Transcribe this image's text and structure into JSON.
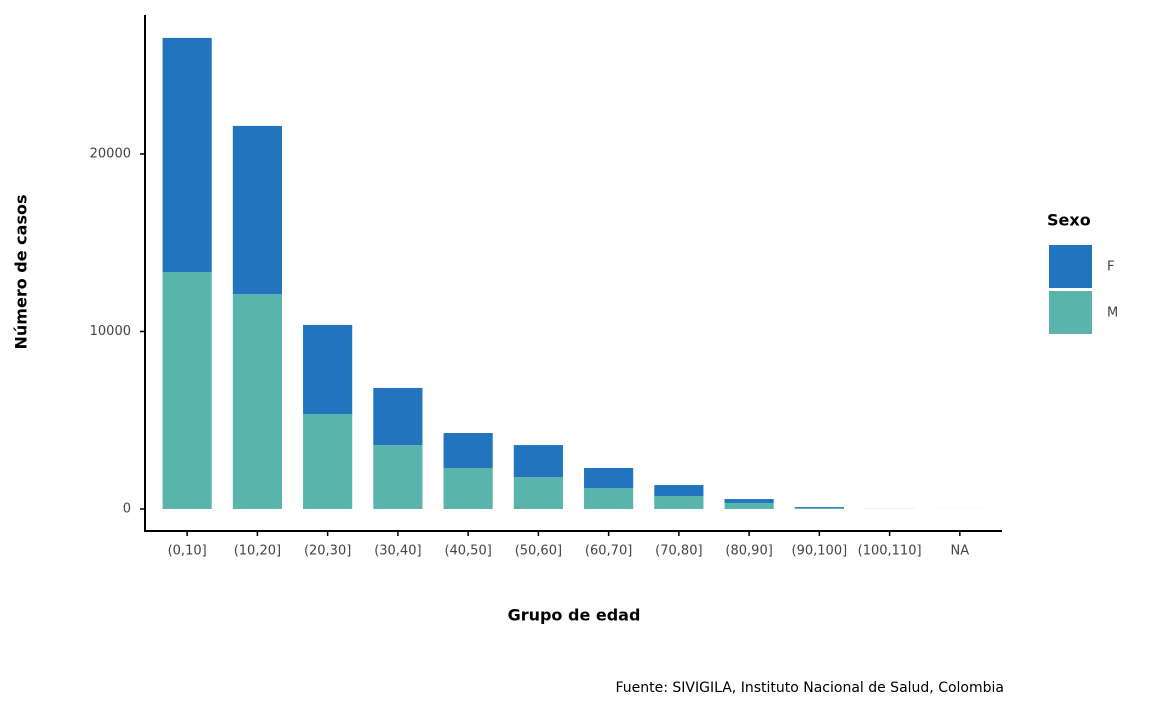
{
  "chart_data": {
    "type": "stacked_bar",
    "x_label": "Grupo de edad",
    "y_label": "Número de casos",
    "caption": "Fuente: SIVIGILA, Instituto Nacional de Salud, Colombia",
    "legend_title": "Sexo",
    "categories": [
      "(0,10]",
      "(10,20]",
      "(20,30]",
      "(30,40]",
      "(40,50]",
      "(50,60]",
      "(60,70]",
      "(70,80]",
      "(80,90]",
      "(90,100]",
      "(100,110]",
      "NA"
    ],
    "series": [
      {
        "name": "M",
        "color": "#59b4ac",
        "values": [
          13350,
          12100,
          5350,
          3600,
          2310,
          1800,
          1180,
          730,
          340,
          60,
          5,
          2
        ]
      },
      {
        "name": "F",
        "color": "#2274be",
        "values": [
          13190,
          9480,
          5020,
          3220,
          1970,
          1800,
          1130,
          620,
          220,
          50,
          3,
          1
        ]
      }
    ],
    "legend_order": [
      "F",
      "M"
    ],
    "ylim": [
      -1240,
      27830
    ],
    "yticks": [
      0,
      10000,
      20000
    ],
    "legend_position": "right"
  }
}
